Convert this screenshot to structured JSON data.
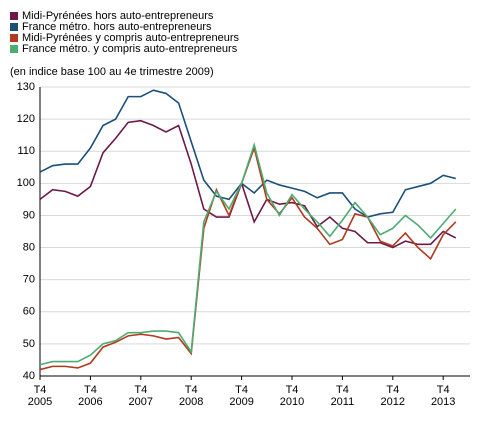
{
  "chart_data": {
    "type": "line",
    "subtitle": "(en indice base 100 au 4e trimestre 2009)",
    "categories": [
      "T4 2005",
      null,
      null,
      null,
      "T4 2006",
      null,
      null,
      null,
      "T4 2007",
      null,
      null,
      null,
      "T4 2008",
      null,
      null,
      null,
      "T4 2009",
      null,
      null,
      null,
      "T4 2010",
      null,
      null,
      null,
      "T4 2011",
      null,
      null,
      null,
      "T4 2012",
      null,
      null,
      null,
      "T4 2013",
      null
    ],
    "series": [
      {
        "name": "Midi-Pyrénées hors auto-entrepreneurs",
        "color": "#6d1a4b",
        "values": [
          95,
          98,
          97.5,
          96,
          99,
          109.5,
          114,
          119,
          119.5,
          118,
          116,
          118,
          106,
          92,
          89.5,
          89.5,
          100,
          88,
          95,
          93.5,
          94,
          93,
          86.5,
          89.5,
          86,
          85,
          81.5,
          81.5,
          80,
          82,
          81,
          81,
          85,
          83
        ]
      },
      {
        "name": "France métro. hors auto-entrepreneurs",
        "color": "#1b4f7a",
        "values": [
          103.5,
          105.5,
          106,
          106,
          111,
          118,
          120,
          127,
          127,
          129,
          128,
          125,
          113,
          101,
          96,
          95,
          100,
          97,
          101,
          99.5,
          98.5,
          97.5,
          95.5,
          97,
          97,
          92,
          89.5,
          90.5,
          91,
          98,
          99,
          100,
          102.5,
          101.5
        ]
      },
      {
        "name": "Midi-Pyrénées y compris auto-entrepreneurs",
        "color": "#b03a1e",
        "values": [
          42,
          43,
          43,
          42.5,
          44,
          49,
          50.5,
          52.5,
          53,
          52.5,
          51.5,
          52,
          47,
          86,
          98,
          90,
          100,
          111,
          95,
          90.5,
          95.5,
          89.5,
          86,
          81,
          82.5,
          90.5,
          89.5,
          82,
          80.5,
          84.5,
          80,
          76.5,
          84,
          88
        ]
      },
      {
        "name": "France métro. y compris auto-entrepreneurs",
        "color": "#4eac73",
        "values": [
          43.5,
          44.5,
          44.5,
          44.5,
          46.5,
          50,
          51,
          53.5,
          53.5,
          54,
          54,
          53.5,
          47.5,
          88,
          97.5,
          92,
          100,
          112,
          97,
          90,
          96.5,
          92,
          88,
          83.5,
          88.5,
          94,
          89.5,
          84,
          86,
          90,
          87,
          83,
          87.5,
          92
        ]
      }
    ],
    "ylim": [
      40,
      130
    ],
    "yticks": [
      40,
      50,
      60,
      70,
      80,
      90,
      100,
      110,
      120,
      130
    ],
    "grid": true
  }
}
